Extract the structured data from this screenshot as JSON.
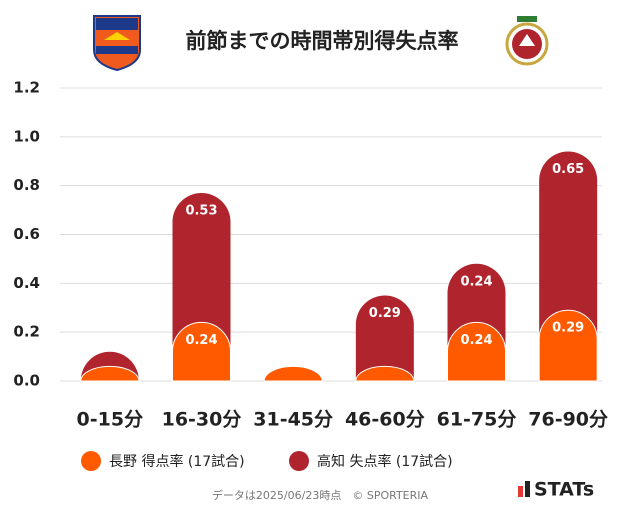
{
  "chart_data": {
    "type": "stacked-bar",
    "title": "前節までの時間帯別得失点率",
    "categories": [
      "0-15分",
      "16-30分",
      "31-45分",
      "46-60分",
      "61-75分",
      "76-90分"
    ],
    "series": [
      {
        "name": "長野 得点率 (17試合)",
        "color": "#ff5a00",
        "values": [
          0.06,
          0.24,
          0.06,
          0.06,
          0.24,
          0.29
        ],
        "value_labels": [
          null,
          "0.24",
          null,
          null,
          "0.24",
          "0.29"
        ]
      },
      {
        "name": "高知 失点率 (17試合)",
        "color": "#b0242e",
        "values": [
          0.06,
          0.53,
          0,
          0.29,
          0.24,
          0.65
        ],
        "value_labels": [
          null,
          "0.53",
          null,
          "0.29",
          "0.24",
          "0.65"
        ]
      }
    ],
    "ylim": [
      0,
      1.2
    ],
    "yticks": [
      {
        "value": 0,
        "label": "0.0"
      },
      0.2,
      0.4,
      0.6,
      0.8,
      {
        "value": 1,
        "label": "1.0"
      },
      1.2
    ],
    "grid": true,
    "footnote": "データは2025/06/23時点　© SPORTERIA",
    "brand": "STATs"
  }
}
